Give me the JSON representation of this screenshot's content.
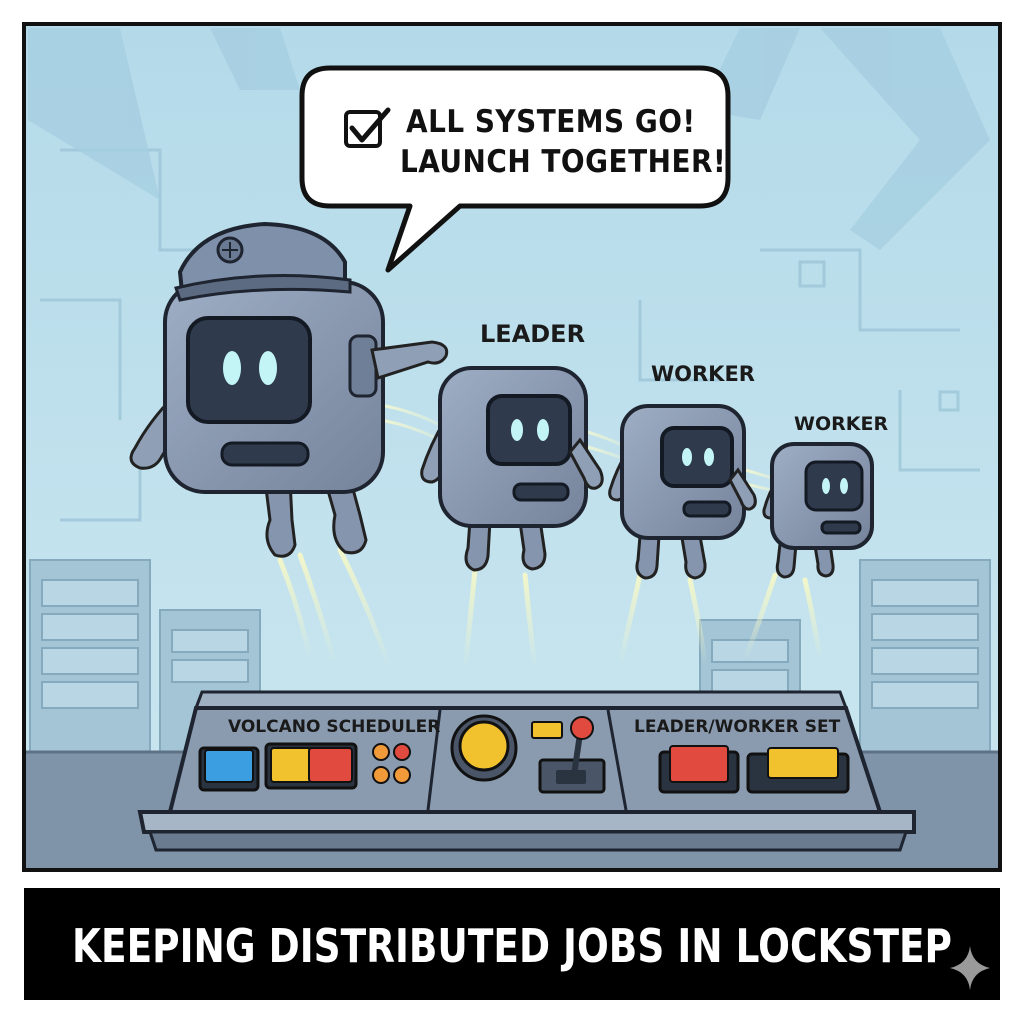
{
  "speech_bubble": {
    "line1": "ALL SYSTEMS GO!",
    "line2": "LAUNCH TOGETHER!",
    "icon": "checkbox-checked-icon"
  },
  "robots": {
    "leader_label": "LEADER",
    "worker1_label": "WORKER",
    "worker2_label": "WORKER"
  },
  "console": {
    "left_label": "VOLCANO SCHEDULER",
    "right_label": "LEADER/WORKER SET"
  },
  "caption": {
    "text": "KEEPING DISTRIBUTED JOBS IN LOCKSTEP"
  },
  "colors": {
    "sky": "#b7dcea",
    "robot_body": "#8b9bb4",
    "screen": "#2f3a4c",
    "eye_glow": "#bff3f4",
    "console": "#8697ab",
    "button_blue": "#3b9ee0",
    "button_yellow": "#f2c12e",
    "button_red": "#e04a3f",
    "button_orange": "#f19a3a",
    "caption_bg": "#000000"
  }
}
